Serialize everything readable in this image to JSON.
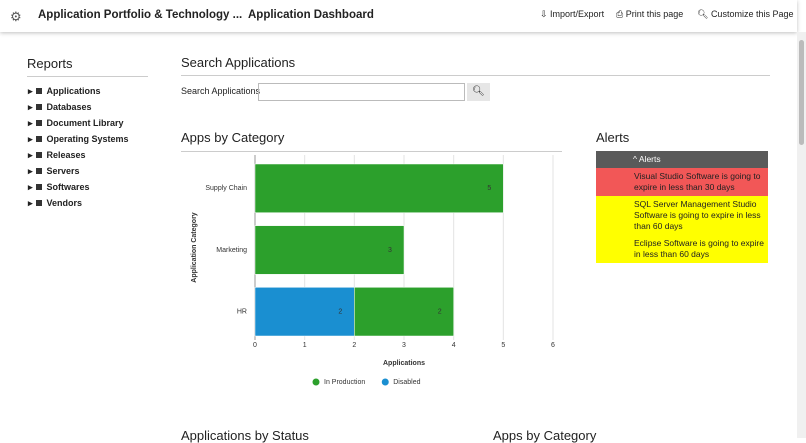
{
  "header": {
    "title": "Application Portfolio & Technology ...",
    "page": "Application Dashboard",
    "actions": [
      "Import/Export",
      "Print this page",
      "Customize this Page"
    ]
  },
  "sidebar": {
    "title": "Reports",
    "items": [
      "Applications",
      "Databases",
      "Document Library",
      "Operating Systems",
      "Releases",
      "Servers",
      "Softwares",
      "Vendors"
    ]
  },
  "search": {
    "heading": "Search Applications",
    "label": "Search Applications"
  },
  "chart_data": {
    "type": "stacked-barh",
    "title": "Apps by Category",
    "categories": [
      "Supply Chain",
      "Marketing",
      "HR"
    ],
    "series": [
      {
        "name": "In Production",
        "color": "#2ca02c",
        "values": [
          5,
          3,
          2
        ]
      },
      {
        "name": "Disabled",
        "color": "#1a8fd1",
        "values": [
          null,
          null,
          2
        ]
      }
    ],
    "xlim": [
      0,
      6
    ],
    "xticks": [
      0,
      1,
      2,
      3,
      4,
      5,
      6
    ],
    "xlabel": "Applications",
    "ylabel": "Application Category",
    "grid": true,
    "legend": "bottom"
  },
  "alerts": {
    "heading": "Alerts",
    "column": "Alerts",
    "items": [
      {
        "text": "Visual Studio Software is going to expire in less than 30 days",
        "color": "#f25757"
      },
      {
        "text": "SQL Server Management Studio Software is going to expire in less than 60 days",
        "color": "#ffff00"
      },
      {
        "text": "Eclipse Software is going to expire in less than 60 days",
        "color": "#ffff00"
      }
    ]
  },
  "bottom": {
    "headings": [
      "Applications by Status",
      "Apps by Category"
    ]
  }
}
